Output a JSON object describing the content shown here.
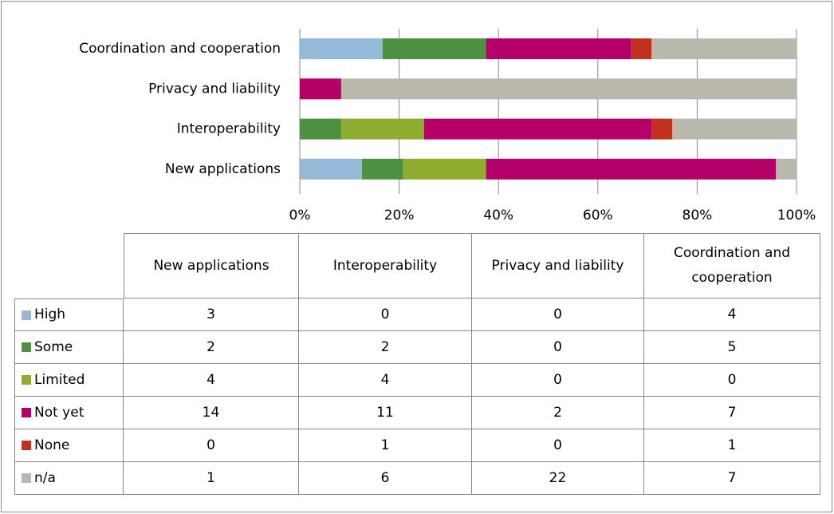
{
  "chart_data": {
    "type": "bar",
    "orientation": "horizontal",
    "stacked": "percent",
    "categories": [
      "New applications",
      "Interoperability",
      "Privacy and liability",
      "Coordination and cooperation"
    ],
    "series": [
      {
        "name": "High",
        "color": "#95b9d9",
        "values": [
          3,
          0,
          0,
          4
        ]
      },
      {
        "name": "Some",
        "color": "#4e9142",
        "values": [
          2,
          2,
          0,
          5
        ]
      },
      {
        "name": "Limited",
        "color": "#8fad2e",
        "values": [
          4,
          4,
          0,
          0
        ]
      },
      {
        "name": "Not yet",
        "color": "#b5006a",
        "values": [
          14,
          11,
          2,
          7
        ]
      },
      {
        "name": "None",
        "color": "#c0311e",
        "values": [
          0,
          1,
          0,
          1
        ]
      },
      {
        "name": "n/a",
        "color": "#bab8ac",
        "values": [
          1,
          6,
          22,
          7
        ]
      }
    ],
    "xlim": [
      0,
      100
    ],
    "xticks": [
      {
        "value": 0,
        "label": "0%"
      },
      {
        "value": 20,
        "label": "20%"
      },
      {
        "value": 40,
        "label": "40%"
      },
      {
        "value": 60,
        "label": "60%"
      },
      {
        "value": 80,
        "label": "80%"
      },
      {
        "value": 100,
        "label": "100%"
      }
    ],
    "grid": true,
    "data_table": true
  }
}
